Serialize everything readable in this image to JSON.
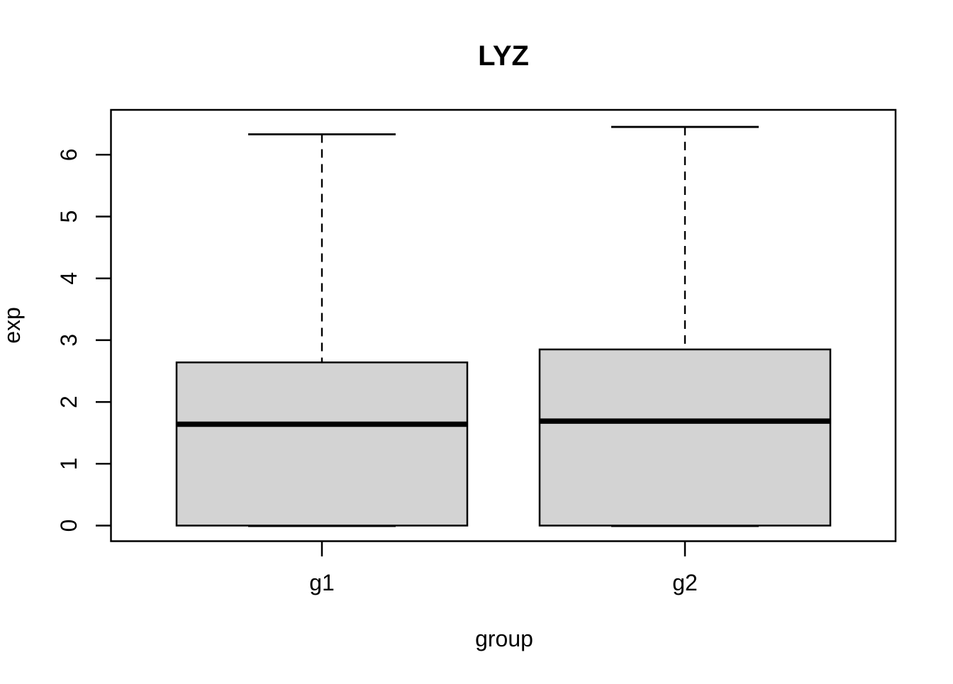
{
  "figure": {
    "title": "LYZ"
  },
  "chart_data": {
    "type": "boxplot",
    "title": "LYZ",
    "xlabel": "group",
    "ylabel": "exp",
    "categories": [
      "g1",
      "g2"
    ],
    "yticks": [
      0,
      1,
      2,
      3,
      4,
      5,
      6
    ],
    "ylim": [
      -0.25,
      6.72
    ],
    "grid": false,
    "legend": false,
    "groups": [
      {
        "label": "g1",
        "whisker_low": 0,
        "q1": 0,
        "median": 1.64,
        "q3": 2.64,
        "whisker_high": 6.33,
        "outliers": []
      },
      {
        "label": "g2",
        "whisker_low": 0,
        "q1": 0,
        "median": 1.69,
        "q3": 2.85,
        "whisker_high": 6.45,
        "outliers": []
      }
    ],
    "colors": {
      "box_fill": "#d3d3d3",
      "line": "#000000",
      "background": "#ffffff"
    }
  }
}
